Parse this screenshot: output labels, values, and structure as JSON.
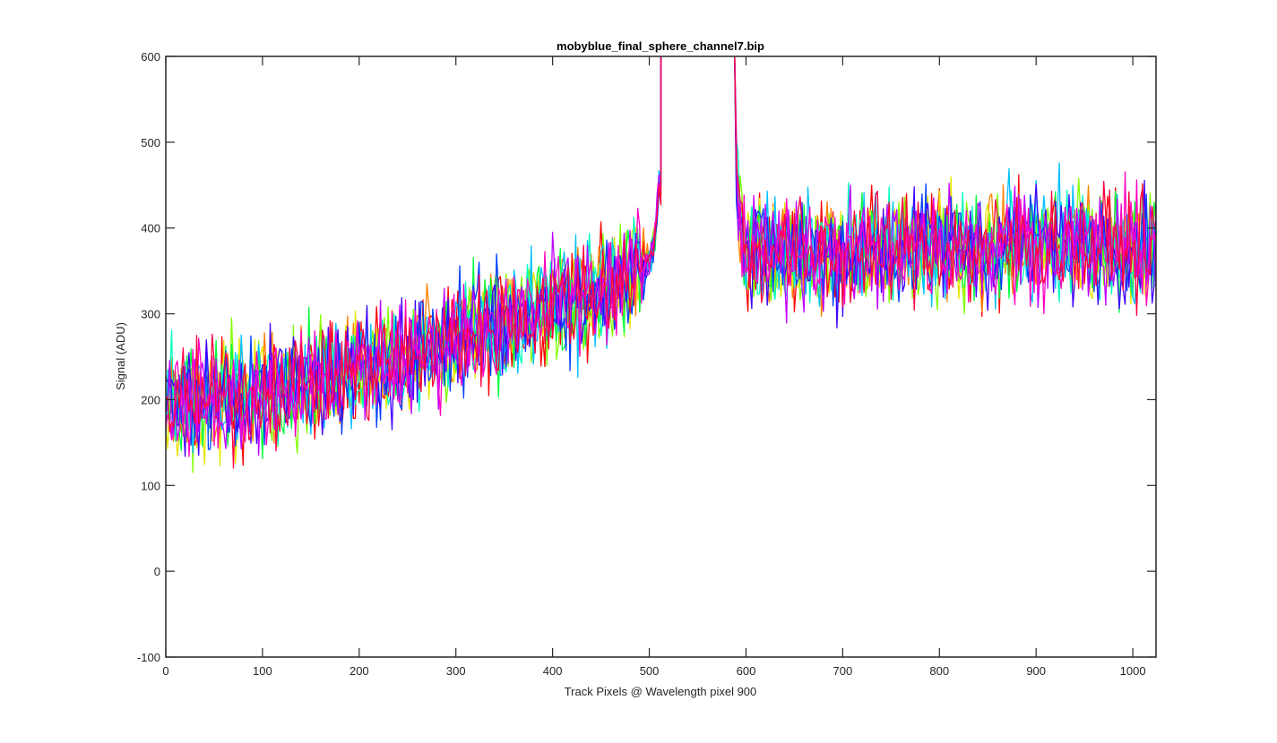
{
  "chart_data": {
    "type": "line",
    "title": "mobyblue_final_sphere_channel7.bip",
    "xlabel": "Track Pixels @ Wavelength pixel 900",
    "ylabel": "Signal (ADU)",
    "xlim": [
      0,
      1024
    ],
    "ylim": [
      -100,
      600
    ],
    "xticks": [
      0,
      100,
      200,
      300,
      400,
      500,
      600,
      700,
      800,
      900,
      1000
    ],
    "yticks": [
      -100,
      0,
      100,
      200,
      300,
      400,
      500,
      600
    ],
    "grid": false,
    "legend": "none",
    "gap": [
      512,
      588
    ],
    "trend_left": {
      "x": [
        0,
        50,
        100,
        150,
        200,
        250,
        300,
        350,
        400,
        450,
        480,
        500,
        505,
        510
      ],
      "y": [
        195,
        200,
        210,
        220,
        235,
        250,
        270,
        290,
        310,
        330,
        345,
        360,
        380,
        450
      ]
    },
    "trend_right": {
      "x": [
        588,
        592,
        600,
        650,
        700,
        750,
        800,
        850,
        900,
        950,
        1000,
        1024
      ],
      "y": [
        520,
        420,
        375,
        370,
        370,
        375,
        380,
        375,
        385,
        380,
        380,
        380
      ]
    },
    "noise_amplitude": 45,
    "series": [
      {
        "color": "#ff0000"
      },
      {
        "color": "#ff7f00"
      },
      {
        "color": "#e6e600"
      },
      {
        "color": "#80ff00"
      },
      {
        "color": "#00ff40"
      },
      {
        "color": "#00ffc0"
      },
      {
        "color": "#00c0ff"
      },
      {
        "color": "#0040ff"
      },
      {
        "color": "#4000ff"
      },
      {
        "color": "#c000ff"
      },
      {
        "color": "#ff00c0"
      },
      {
        "color": "#ff0040"
      }
    ]
  }
}
